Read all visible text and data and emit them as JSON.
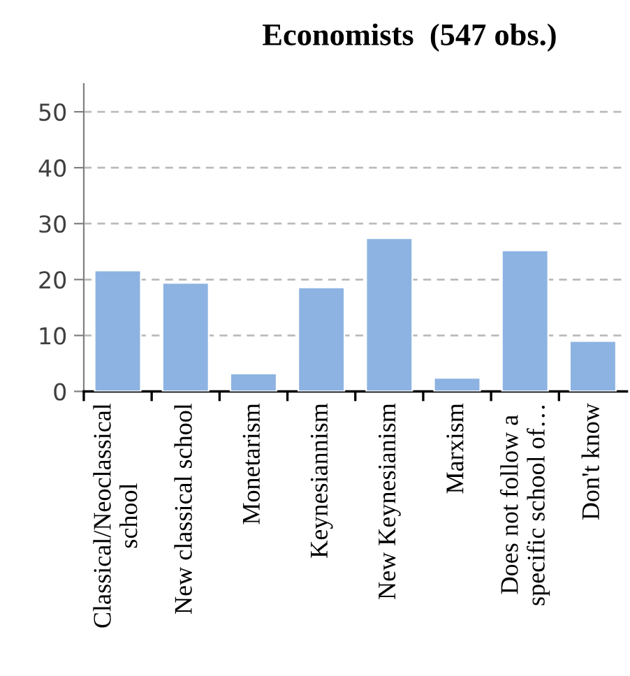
{
  "chart_data": {
    "type": "bar",
    "title": "Economists  (547 obs.)",
    "categories": [
      "Classical/Neoclassical\nschool",
      "New classical school",
      "Monetarism",
      "Keynesiannism",
      "New Keynesianism",
      "Marxism",
      "Does not follow a\nspecific school of…",
      "Don't know"
    ],
    "values": [
      21.6,
      19.4,
      3.2,
      18.6,
      27.4,
      2.4,
      25.2,
      9.0
    ],
    "color": "#8db3e2",
    "ylim": [
      0,
      55
    ],
    "yticks": [
      0,
      10,
      20,
      30,
      40,
      50
    ],
    "grid": "y"
  }
}
